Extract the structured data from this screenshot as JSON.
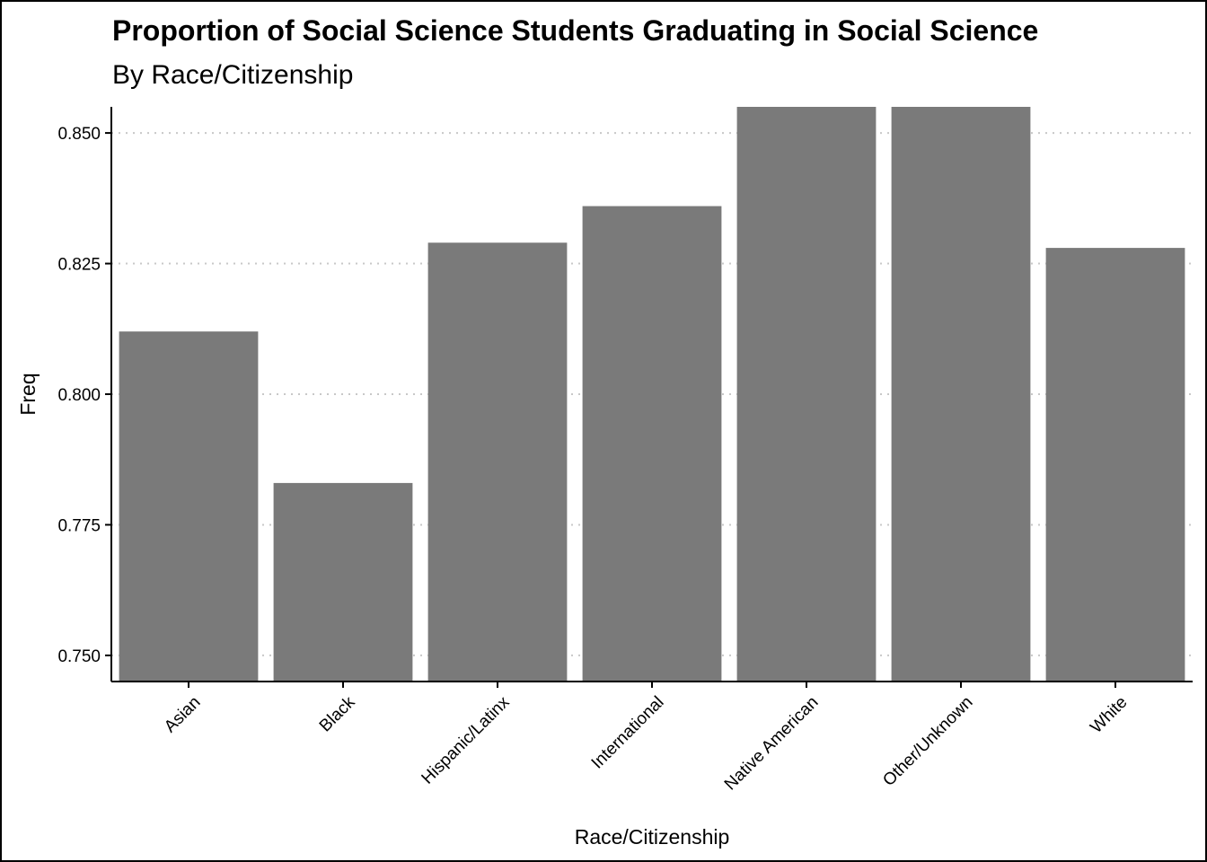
{
  "chart_data": {
    "type": "bar",
    "title": "Proportion of Social Science Students Graduating in Social Science",
    "subtitle": "By Race/Citizenship",
    "xlabel": "Race/Citizenship",
    "ylabel": "Freq",
    "categories": [
      "Asian",
      "Black",
      "Hispanic/Latinx",
      "International",
      "Native American",
      "Other/Unknown",
      "White"
    ],
    "values": [
      0.812,
      0.783,
      0.829,
      0.836,
      0.855,
      0.855,
      0.828
    ],
    "ylim": [
      0.745,
      0.855
    ],
    "yticks": [
      0.75,
      0.775,
      0.8,
      0.825,
      0.85
    ],
    "ytick_labels": [
      "0.750",
      "0.775",
      "0.800",
      "0.825",
      "0.850"
    ],
    "grid": "horizontal dotted",
    "legend": "none",
    "bar_color": "#7a7a7a",
    "grid_color": "#c8c8c8"
  }
}
